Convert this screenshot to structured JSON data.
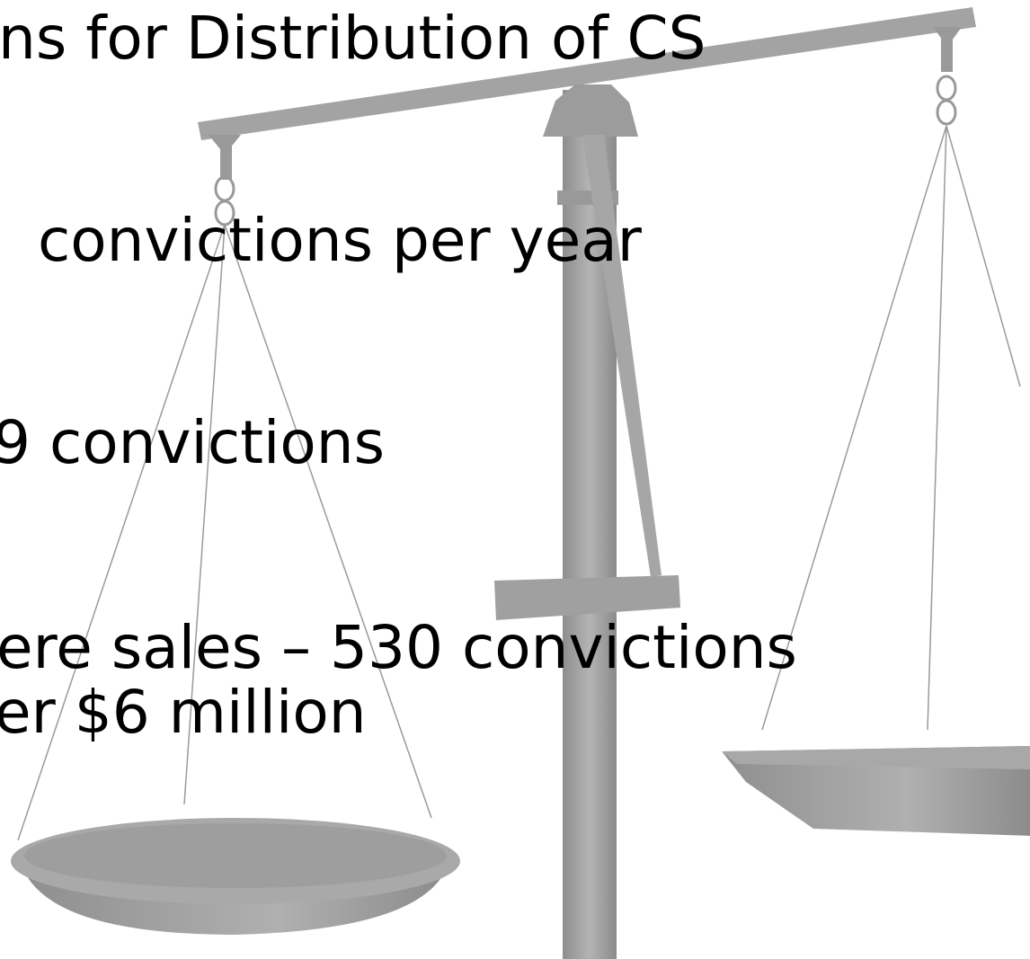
{
  "slide": {
    "title": "ns for Distribution of CS",
    "lines": [
      "convictions per year",
      "9 convictions",
      "ere sales – 530 convictions",
      "er $6 million"
    ]
  }
}
